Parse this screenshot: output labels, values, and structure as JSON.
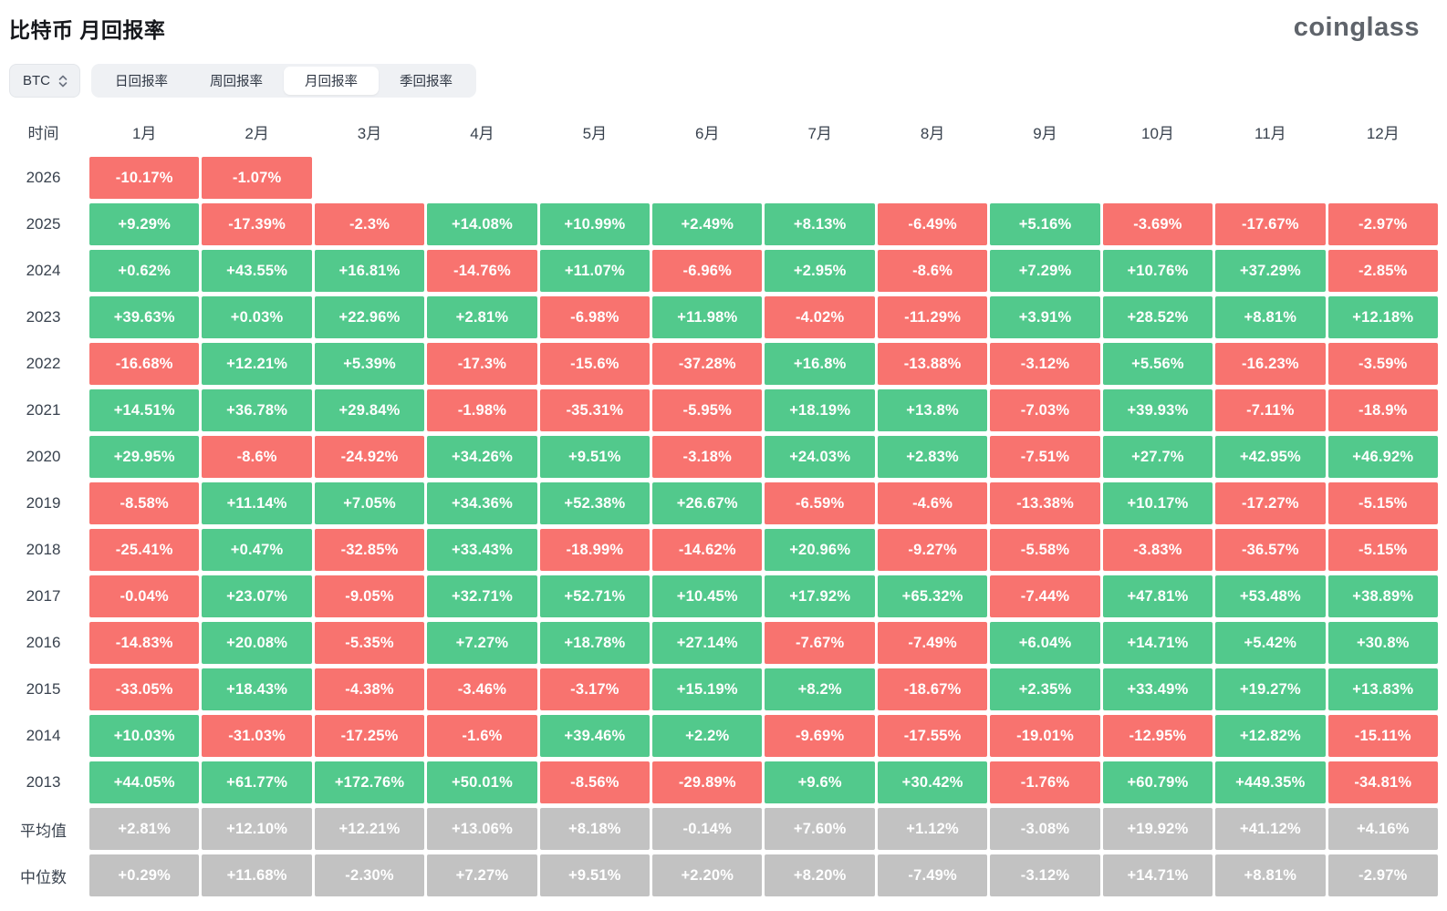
{
  "header": {
    "title": "比特币 月回报率",
    "logo": "coinglass"
  },
  "controls": {
    "coin_selector": "BTC",
    "tabs": [
      {
        "label": "日回报率",
        "active": false
      },
      {
        "label": "周回报率",
        "active": false
      },
      {
        "label": "月回报率",
        "active": true
      },
      {
        "label": "季回报率",
        "active": false
      }
    ]
  },
  "chart_data": {
    "type": "heatmap",
    "title": "比特币 月回报率",
    "row_header": "时间",
    "columns": [
      "1月",
      "2月",
      "3月",
      "4月",
      "5月",
      "6月",
      "7月",
      "8月",
      "9月",
      "10月",
      "11月",
      "12月"
    ],
    "rows": [
      {
        "label": "2026",
        "kind": "year",
        "values": [
          "-10.17%",
          "-1.07%",
          "",
          "",
          "",
          "",
          "",
          "",
          "",
          "",
          "",
          ""
        ]
      },
      {
        "label": "2025",
        "kind": "year",
        "values": [
          "+9.29%",
          "-17.39%",
          "-2.3%",
          "+14.08%",
          "+10.99%",
          "+2.49%",
          "+8.13%",
          "-6.49%",
          "+5.16%",
          "-3.69%",
          "-17.67%",
          "-2.97%"
        ]
      },
      {
        "label": "2024",
        "kind": "year",
        "values": [
          "+0.62%",
          "+43.55%",
          "+16.81%",
          "-14.76%",
          "+11.07%",
          "-6.96%",
          "+2.95%",
          "-8.6%",
          "+7.29%",
          "+10.76%",
          "+37.29%",
          "-2.85%"
        ]
      },
      {
        "label": "2023",
        "kind": "year",
        "values": [
          "+39.63%",
          "+0.03%",
          "+22.96%",
          "+2.81%",
          "-6.98%",
          "+11.98%",
          "-4.02%",
          "-11.29%",
          "+3.91%",
          "+28.52%",
          "+8.81%",
          "+12.18%"
        ]
      },
      {
        "label": "2022",
        "kind": "year",
        "values": [
          "-16.68%",
          "+12.21%",
          "+5.39%",
          "-17.3%",
          "-15.6%",
          "-37.28%",
          "+16.8%",
          "-13.88%",
          "-3.12%",
          "+5.56%",
          "-16.23%",
          "-3.59%"
        ]
      },
      {
        "label": "2021",
        "kind": "year",
        "values": [
          "+14.51%",
          "+36.78%",
          "+29.84%",
          "-1.98%",
          "-35.31%",
          "-5.95%",
          "+18.19%",
          "+13.8%",
          "-7.03%",
          "+39.93%",
          "-7.11%",
          "-18.9%"
        ]
      },
      {
        "label": "2020",
        "kind": "year",
        "values": [
          "+29.95%",
          "-8.6%",
          "-24.92%",
          "+34.26%",
          "+9.51%",
          "-3.18%",
          "+24.03%",
          "+2.83%",
          "-7.51%",
          "+27.7%",
          "+42.95%",
          "+46.92%"
        ]
      },
      {
        "label": "2019",
        "kind": "year",
        "values": [
          "-8.58%",
          "+11.14%",
          "+7.05%",
          "+34.36%",
          "+52.38%",
          "+26.67%",
          "-6.59%",
          "-4.6%",
          "-13.38%",
          "+10.17%",
          "-17.27%",
          "-5.15%"
        ]
      },
      {
        "label": "2018",
        "kind": "year",
        "values": [
          "-25.41%",
          "+0.47%",
          "-32.85%",
          "+33.43%",
          "-18.99%",
          "-14.62%",
          "+20.96%",
          "-9.27%",
          "-5.58%",
          "-3.83%",
          "-36.57%",
          "-5.15%"
        ]
      },
      {
        "label": "2017",
        "kind": "year",
        "values": [
          "-0.04%",
          "+23.07%",
          "-9.05%",
          "+32.71%",
          "+52.71%",
          "+10.45%",
          "+17.92%",
          "+65.32%",
          "-7.44%",
          "+47.81%",
          "+53.48%",
          "+38.89%"
        ]
      },
      {
        "label": "2016",
        "kind": "year",
        "values": [
          "-14.83%",
          "+20.08%",
          "-5.35%",
          "+7.27%",
          "+18.78%",
          "+27.14%",
          "-7.67%",
          "-7.49%",
          "+6.04%",
          "+14.71%",
          "+5.42%",
          "+30.8%"
        ]
      },
      {
        "label": "2015",
        "kind": "year",
        "values": [
          "-33.05%",
          "+18.43%",
          "-4.38%",
          "-3.46%",
          "-3.17%",
          "+15.19%",
          "+8.2%",
          "-18.67%",
          "+2.35%",
          "+33.49%",
          "+19.27%",
          "+13.83%"
        ]
      },
      {
        "label": "2014",
        "kind": "year",
        "values": [
          "+10.03%",
          "-31.03%",
          "-17.25%",
          "-1.6%",
          "+39.46%",
          "+2.2%",
          "-9.69%",
          "-17.55%",
          "-19.01%",
          "-12.95%",
          "+12.82%",
          "-15.11%"
        ]
      },
      {
        "label": "2013",
        "kind": "year",
        "values": [
          "+44.05%",
          "+61.77%",
          "+172.76%",
          "+50.01%",
          "-8.56%",
          "-29.89%",
          "+9.6%",
          "+30.42%",
          "-1.76%",
          "+60.79%",
          "+449.35%",
          "-34.81%"
        ]
      },
      {
        "label": "平均值",
        "kind": "summary",
        "values": [
          "+2.81%",
          "+12.10%",
          "+12.21%",
          "+13.06%",
          "+8.18%",
          "-0.14%",
          "+7.60%",
          "+1.12%",
          "-3.08%",
          "+19.92%",
          "+41.12%",
          "+4.16%"
        ]
      },
      {
        "label": "中位数",
        "kind": "summary",
        "values": [
          "+0.29%",
          "+11.68%",
          "-2.30%",
          "+7.27%",
          "+9.51%",
          "+2.20%",
          "+8.20%",
          "-7.49%",
          "-3.12%",
          "+14.71%",
          "+8.81%",
          "-2.97%"
        ]
      }
    ],
    "colors": {
      "positive": "#52c98c",
      "negative": "#f8736f",
      "summary": "#c2c2c2"
    },
    "legend_position": "none",
    "grid": false
  }
}
